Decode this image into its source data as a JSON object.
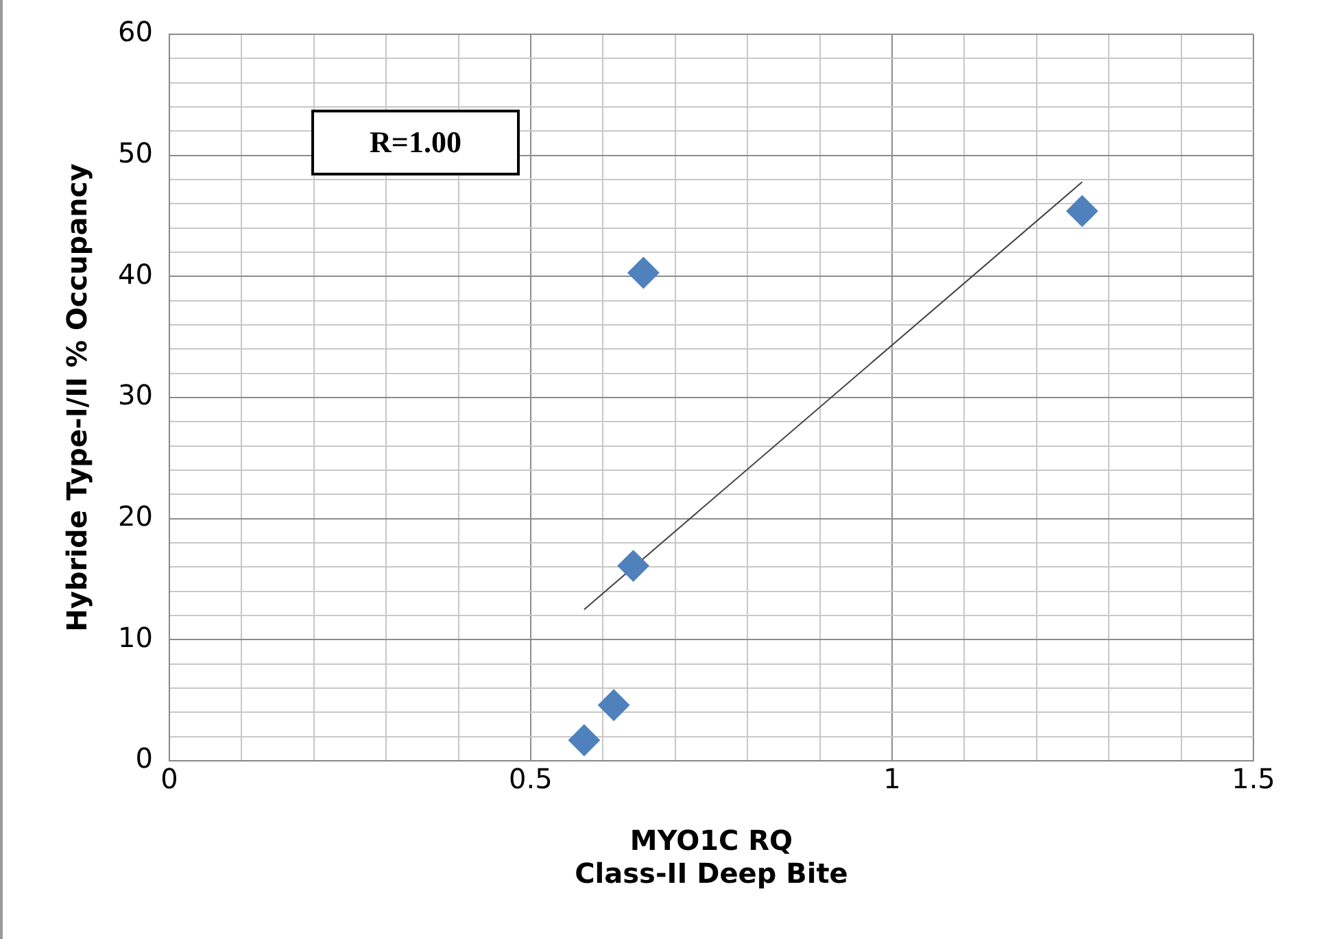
{
  "chart_data": {
    "type": "scatter",
    "xlabel": "MYO1C RQ\nClass-II Deep Bite",
    "ylabel": "Hybride Type-I/II % Occupancy",
    "annotations": [
      "R=1.00"
    ],
    "grid": true,
    "marker": "diamond",
    "legend": false,
    "x": [
      0.574,
      0.615,
      0.642,
      0.656,
      1.263
    ],
    "series": [
      {
        "color": "#4f81bd",
        "values": [
          1.7,
          4.6,
          16.1,
          40.3,
          45.4
        ]
      },
      {
        "type": "line",
        "marker": "none",
        "color": "#404040",
        "x": [
          0.574,
          1.263
        ],
        "values": [
          12.5,
          47.8
        ]
      }
    ],
    "xlim": [
      0,
      1.5
    ],
    "ylim": [
      0,
      60
    ],
    "xticks": [
      0,
      {
        "value": 0.1,
        "label": null
      },
      {
        "value": 0.2,
        "label": null
      },
      {
        "value": 0.3,
        "label": null
      },
      {
        "value": 0.4,
        "label": null
      },
      0.5,
      {
        "value": 0.6,
        "label": null
      },
      {
        "value": 0.7,
        "label": null
      },
      {
        "value": 0.8,
        "label": null
      },
      {
        "value": 0.9,
        "label": null
      },
      1,
      {
        "value": 1.1,
        "label": null
      },
      {
        "value": 1.2,
        "label": null
      },
      {
        "value": 1.3,
        "label": null
      },
      {
        "value": 1.4,
        "label": null
      },
      1.5
    ],
    "yticks": [
      0,
      {
        "value": 2,
        "label": null
      },
      {
        "value": 4,
        "label": null
      },
      {
        "value": 6,
        "label": null
      },
      {
        "value": 8,
        "label": null
      },
      10,
      {
        "value": 12,
        "label": null
      },
      {
        "value": 14,
        "label": null
      },
      {
        "value": 16,
        "label": null
      },
      {
        "value": 18,
        "label": null
      },
      20,
      {
        "value": 22,
        "label": null
      },
      {
        "value": 24,
        "label": null
      },
      {
        "value": 26,
        "label": null
      },
      {
        "value": 28,
        "label": null
      },
      30,
      {
        "value": 32,
        "label": null
      },
      {
        "value": 34,
        "label": null
      },
      {
        "value": 36,
        "label": null
      },
      {
        "value": 38,
        "label": null
      },
      40,
      {
        "value": 42,
        "label": null
      },
      {
        "value": 44,
        "label": null
      },
      {
        "value": 46,
        "label": null
      },
      {
        "value": 48,
        "label": null
      },
      50,
      {
        "value": 52,
        "label": null
      },
      {
        "value": 54,
        "label": null
      },
      {
        "value": 56,
        "label": null
      },
      {
        "value": 58,
        "label": null
      },
      60
    ]
  }
}
